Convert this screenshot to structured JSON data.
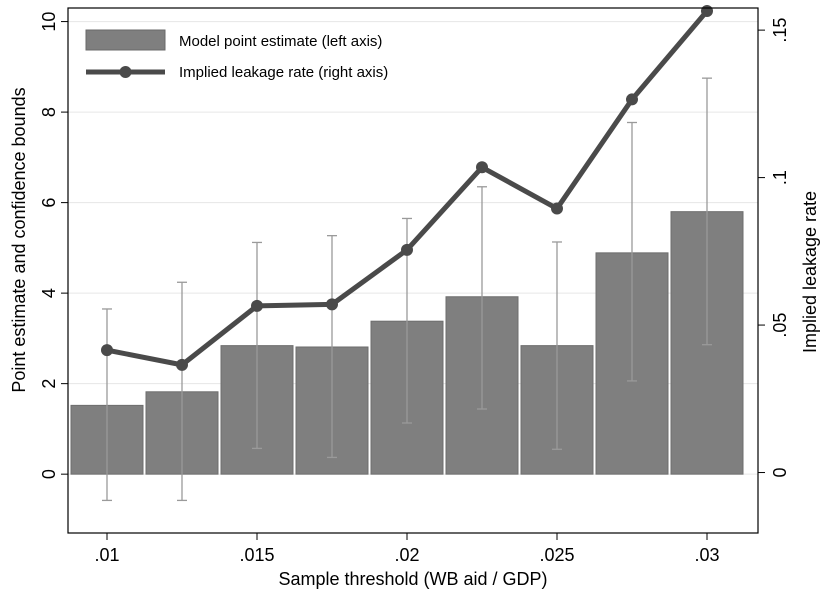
{
  "chart_data": {
    "type": "bar",
    "xlabel": "Sample threshold (WB aid / GDP)",
    "ylabel": "Point estimate and confidence bounds",
    "y2label": "Implied leakage rate",
    "x_ticks": [
      ".01",
      ".015",
      ".02",
      ".025",
      ".03"
    ],
    "x_tick_values": [
      0.01,
      0.015,
      0.02,
      0.025,
      0.03
    ],
    "y_ticks": [
      "0",
      "2",
      "4",
      "6",
      "8",
      "10"
    ],
    "y_tick_values": [
      0,
      2,
      4,
      6,
      8,
      10
    ],
    "y2_ticks": [
      "0",
      ".05",
      ".1",
      ".15"
    ],
    "y2_tick_values": [
      0,
      0.05,
      0.1,
      0.15
    ],
    "xlim": [
      0.0087,
      0.0317
    ],
    "ylim": [
      -1.3,
      10.3
    ],
    "y2lim": [
      -0.0205,
      0.1575
    ],
    "grid": true,
    "legend_position": "top-left",
    "x": [
      0.01,
      0.0125,
      0.015,
      0.0175,
      0.02,
      0.0225,
      0.025,
      0.0275,
      0.03
    ],
    "series": [
      {
        "name": "Model point estimate (left axis)",
        "kind": "bar",
        "axis": "left",
        "color": "#7f7f7f",
        "values": [
          1.52,
          1.82,
          2.84,
          2.81,
          3.38,
          3.92,
          2.84,
          4.89,
          5.8
        ],
        "ci_lower": [
          -0.58,
          -0.58,
          0.57,
          0.37,
          1.13,
          1.44,
          0.55,
          2.06,
          2.86
        ],
        "ci_upper": [
          3.65,
          4.24,
          5.12,
          5.27,
          5.65,
          6.35,
          5.13,
          7.77,
          8.75
        ]
      },
      {
        "name": "Implied leakage rate (right axis)",
        "kind": "line",
        "axis": "right",
        "color": "#4a4a4a",
        "values": [
          0.0415,
          0.0365,
          0.0565,
          0.057,
          0.0755,
          0.1035,
          0.0895,
          0.1265,
          0.1565
        ]
      }
    ]
  }
}
